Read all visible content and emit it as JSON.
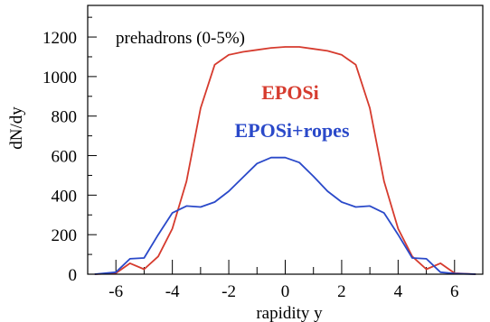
{
  "chart_data": {
    "type": "line",
    "title": "",
    "xlabel": "rapidity y",
    "ylabel": "dN/dy",
    "annotation": "prehadrons (0-5%)",
    "xlim": [
      -7.0,
      7.0
    ],
    "ylim": [
      0,
      1360
    ],
    "xticks": [
      -6,
      -4,
      -2,
      0,
      2,
      4,
      6
    ],
    "yticks": [
      0,
      200,
      400,
      600,
      800,
      1000,
      1200
    ],
    "grid": false,
    "legend": "inline-labels",
    "series": [
      {
        "name": "EPOSi",
        "color": "#d63b2e",
        "x": [
          -6.75,
          -6.0,
          -5.5,
          -5.0,
          -4.5,
          -4.0,
          -3.5,
          -3.0,
          -2.5,
          -2.0,
          -1.5,
          -1.0,
          -0.5,
          0.0,
          0.5,
          1.0,
          1.5,
          2.0,
          2.5,
          3.0,
          3.5,
          4.0,
          4.5,
          5.0,
          5.5,
          6.0,
          6.75
        ],
        "y": [
          0,
          5,
          55,
          25,
          90,
          230,
          470,
          840,
          1060,
          1110,
          1125,
          1135,
          1145,
          1150,
          1150,
          1140,
          1130,
          1110,
          1060,
          840,
          470,
          230,
          90,
          25,
          55,
          5,
          0
        ]
      },
      {
        "name": "EPOSi+ropes",
        "color": "#2a49c9",
        "x": [
          -6.75,
          -6.0,
          -5.5,
          -5.0,
          -4.5,
          -4.0,
          -3.5,
          -3.0,
          -2.5,
          -2.0,
          -1.5,
          -1.0,
          -0.5,
          0.0,
          0.5,
          1.0,
          1.5,
          2.0,
          2.5,
          3.0,
          3.5,
          4.0,
          4.5,
          5.0,
          5.5,
          6.0,
          6.75
        ],
        "y": [
          0,
          10,
          78,
          82,
          200,
          310,
          345,
          340,
          365,
          420,
          490,
          560,
          590,
          590,
          565,
          495,
          420,
          365,
          340,
          345,
          310,
          200,
          82,
          78,
          10,
          3,
          0
        ]
      }
    ]
  }
}
